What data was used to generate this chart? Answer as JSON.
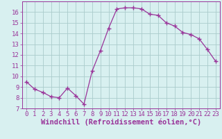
{
  "x": [
    0,
    1,
    2,
    3,
    4,
    5,
    6,
    7,
    8,
    9,
    10,
    11,
    12,
    13,
    14,
    15,
    16,
    17,
    18,
    19,
    20,
    21,
    22,
    23
  ],
  "y": [
    9.5,
    8.8,
    8.5,
    8.1,
    8.0,
    8.9,
    8.2,
    7.4,
    10.5,
    12.4,
    14.5,
    16.3,
    16.4,
    16.4,
    16.3,
    15.8,
    15.7,
    15.0,
    14.7,
    14.1,
    13.9,
    13.5,
    12.5,
    11.4
  ],
  "line_color": "#993399",
  "marker": "+",
  "marker_size": 4,
  "bg_color": "#d8f0f0",
  "grid_color": "#aacccc",
  "xlabel": "Windchill (Refroidissement éolien,°C)",
  "xlim": [
    -0.5,
    23.5
  ],
  "ylim": [
    7,
    17
  ],
  "yticks": [
    7,
    8,
    9,
    10,
    11,
    12,
    13,
    14,
    15,
    16
  ],
  "xticks": [
    0,
    1,
    2,
    3,
    4,
    5,
    6,
    7,
    8,
    9,
    10,
    11,
    12,
    13,
    14,
    15,
    16,
    17,
    18,
    19,
    20,
    21,
    22,
    23
  ],
  "tick_color": "#993399",
  "label_color": "#993399",
  "axis_color": "#993399",
  "tick_font_size": 6.5,
  "xlabel_font_size": 7.5
}
